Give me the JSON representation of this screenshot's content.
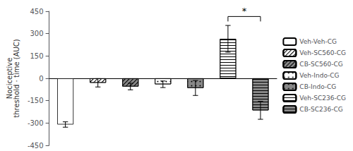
{
  "chart_data": {
    "type": "bar",
    "ylabel": "Nociceptive\nthreshold · time (AUC)",
    "categories": [
      "Veh-Veh-CG",
      "Veh-SC560-CG",
      "CB-SC560-CG",
      "Veh-Indo-CG",
      "CB-Indo-CG",
      "Veh-SC236-CG",
      "CB-SC236-CG"
    ],
    "values": [
      -310,
      -30,
      -55,
      -40,
      -65,
      265,
      -215
    ],
    "errors": [
      18,
      28,
      22,
      22,
      50,
      90,
      60
    ],
    "colors": [
      "white",
      "white",
      "#888888",
      "white",
      "#888888",
      "white",
      "#888888"
    ],
    "ylim": [
      -450,
      450
    ],
    "yticks": [
      -450,
      -300,
      -150,
      0,
      150,
      300,
      450
    ],
    "annotations": [
      {
        "text": "*",
        "x1": "Veh-SC236-CG",
        "x2": "CB-SC236-CG",
        "y": 415
      }
    ],
    "legend": "right",
    "grid": false,
    "tick_labels": "y"
  }
}
